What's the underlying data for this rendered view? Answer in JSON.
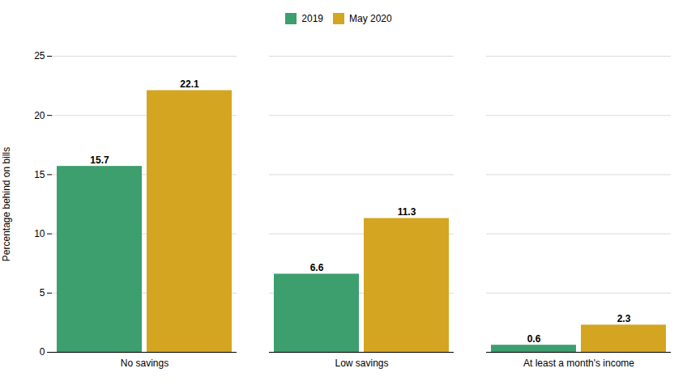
{
  "chart_data": {
    "type": "bar",
    "categories": [
      "No savings",
      "Low savings",
      "At least a month's income"
    ],
    "series": [
      {
        "name": "2019",
        "color": "#3d9e6e",
        "values": [
          15.7,
          6.6,
          0.6
        ]
      },
      {
        "name": "May 2020",
        "color": "#d4a520",
        "values": [
          22.1,
          11.3,
          2.3
        ]
      }
    ],
    "ylabel": "Percentage behind on bills",
    "ylim": [
      0,
      25
    ],
    "yticks": [
      0,
      5,
      10,
      15,
      20,
      25
    ],
    "grid": true,
    "legend": "top",
    "data_labels": true
  }
}
